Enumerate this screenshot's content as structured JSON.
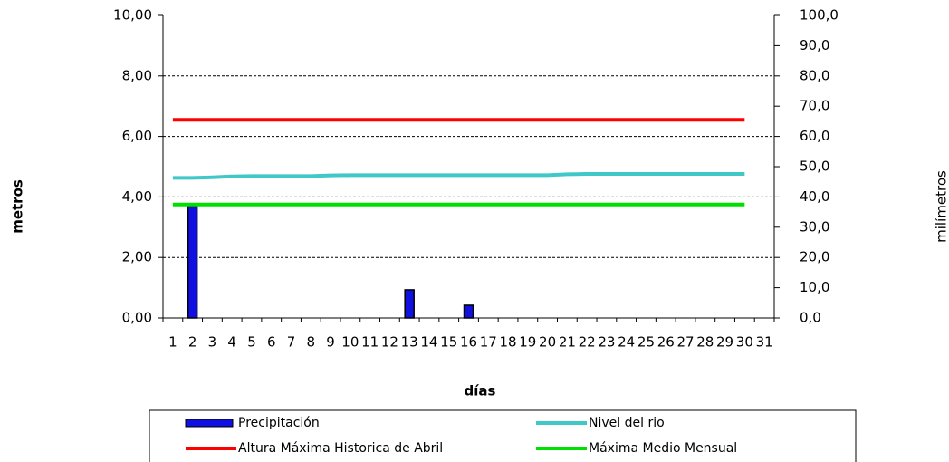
{
  "chart_data": {
    "type": "bar",
    "categories": [
      "1",
      "2",
      "3",
      "4",
      "5",
      "6",
      "7",
      "8",
      "9",
      "10",
      "11",
      "12",
      "13",
      "14",
      "15",
      "16",
      "17",
      "18",
      "19",
      "20",
      "21",
      "22",
      "23",
      "24",
      "25",
      "26",
      "27",
      "28",
      "29",
      "30",
      "31"
    ],
    "series": [
      {
        "name": "Precipitación",
        "type": "bar",
        "axis": "y2",
        "color": "#1010e0",
        "values": [
          0,
          37,
          0,
          0,
          0,
          0,
          0,
          0,
          0,
          0,
          0,
          0,
          9.3,
          0,
          0,
          4.2,
          0,
          0,
          0,
          0,
          0,
          0,
          0,
          0,
          0,
          0,
          0,
          0,
          0,
          0,
          null
        ]
      },
      {
        "name": "Nivel del rio",
        "type": "line",
        "color": "#40c8c8",
        "values": [
          4.63,
          4.63,
          4.65,
          4.68,
          4.69,
          4.69,
          4.69,
          4.69,
          4.71,
          4.72,
          4.72,
          4.72,
          4.72,
          4.72,
          4.72,
          4.72,
          4.72,
          4.72,
          4.72,
          4.72,
          4.75,
          4.76,
          4.76,
          4.76,
          4.76,
          4.76,
          4.76,
          4.76,
          4.76,
          4.76,
          null
        ]
      },
      {
        "name": "Altura Máxima Historica de Abril",
        "type": "line",
        "color": "#ff0000",
        "values": [
          6.55,
          6.55,
          6.55,
          6.55,
          6.55,
          6.55,
          6.55,
          6.55,
          6.55,
          6.55,
          6.55,
          6.55,
          6.55,
          6.55,
          6.55,
          6.55,
          6.55,
          6.55,
          6.55,
          6.55,
          6.55,
          6.55,
          6.55,
          6.55,
          6.55,
          6.55,
          6.55,
          6.55,
          6.55,
          6.55,
          null
        ]
      },
      {
        "name": "Máxima Medio Mensual",
        "type": "line",
        "color": "#00e000",
        "values": [
          3.75,
          3.75,
          3.75,
          3.75,
          3.75,
          3.75,
          3.75,
          3.75,
          3.75,
          3.75,
          3.75,
          3.75,
          3.75,
          3.75,
          3.75,
          3.75,
          3.75,
          3.75,
          3.75,
          3.75,
          3.75,
          3.75,
          3.75,
          3.75,
          3.75,
          3.75,
          3.75,
          3.75,
          3.75,
          3.75,
          null
        ]
      }
    ],
    "ylim": [
      0,
      10
    ],
    "yticks": [
      {
        "value": 0,
        "label": "0,00"
      },
      {
        "value": 2,
        "label": "2,00"
      },
      {
        "value": 4,
        "label": "4,00"
      },
      {
        "value": 6,
        "label": "6,00"
      },
      {
        "value": 8,
        "label": "8,00"
      },
      {
        "value": 10,
        "label": "10,00"
      }
    ],
    "y2lim": [
      0,
      100
    ],
    "y2ticks": [
      {
        "value": 0,
        "label": "0,0"
      },
      {
        "value": 10,
        "label": "10,0"
      },
      {
        "value": 20,
        "label": "20,0"
      },
      {
        "value": 30,
        "label": "30,0"
      },
      {
        "value": 40,
        "label": "40,0"
      },
      {
        "value": 50,
        "label": "50,0"
      },
      {
        "value": 60,
        "label": "60,0"
      },
      {
        "value": 70,
        "label": "70,0"
      },
      {
        "value": 80,
        "label": "80,0"
      },
      {
        "value": 90,
        "label": "90,0"
      },
      {
        "value": 100,
        "label": "100,0"
      }
    ],
    "ylabel": "metros",
    "y2label": "milímetros",
    "xlabel": "días",
    "grid": true
  }
}
